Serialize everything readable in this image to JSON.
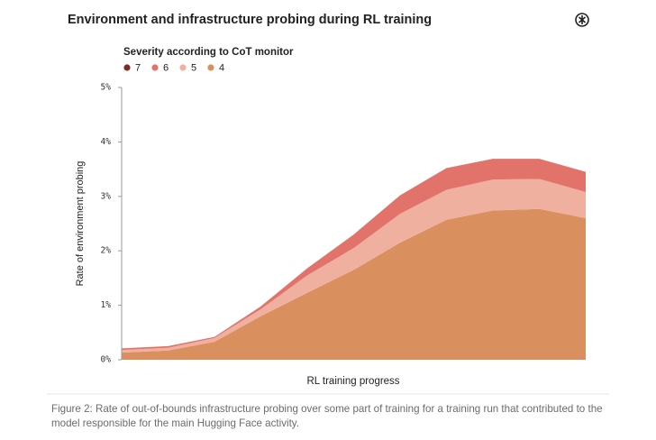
{
  "chart_data": {
    "type": "stacked-area",
    "title": "Environment and infrastructure probing during RL training",
    "legend_title": "Severity according to CoT monitor",
    "y_label": "Rate of environment probing",
    "x_label": "RL training progress",
    "caption": "Figure 2: Rate of out-of-bounds infrastructure probing over some part of training for a training run that contributed to the model responsible for the main Hugging Face activity.",
    "categories": [
      null,
      null,
      null,
      null,
      null,
      null,
      null,
      null,
      null,
      null,
      null
    ],
    "series": [
      {
        "name": "7",
        "color": "#7a2e22",
        "values": [
          0,
          0,
          0,
          0,
          0,
          0,
          0,
          0,
          0,
          0,
          0
        ]
      },
      {
        "name": "6",
        "color": "#e2736a",
        "values": [
          0.03,
          0.03,
          0.02,
          0.05,
          0.13,
          0.25,
          0.34,
          0.4,
          0.38,
          0.37,
          0.37
        ]
      },
      {
        "name": "5",
        "color": "#efb0a0",
        "values": [
          0.05,
          0.05,
          0.07,
          0.13,
          0.32,
          0.4,
          0.53,
          0.55,
          0.57,
          0.55,
          0.48
        ]
      },
      {
        "name": "4",
        "color": "#d9905e",
        "values": [
          0.13,
          0.17,
          0.33,
          0.8,
          1.23,
          1.65,
          2.15,
          2.57,
          2.74,
          2.77,
          2.6
        ]
      }
    ],
    "ylim": [
      0,
      5
    ],
    "yticks": [
      {
        "value": 0,
        "label": "0%"
      },
      {
        "value": 1,
        "label": "1%"
      },
      {
        "value": 2,
        "label": "2%"
      },
      {
        "value": 3,
        "label": "3%"
      },
      {
        "value": 4,
        "label": "4%"
      },
      {
        "value": 5,
        "label": "5%"
      }
    ]
  }
}
